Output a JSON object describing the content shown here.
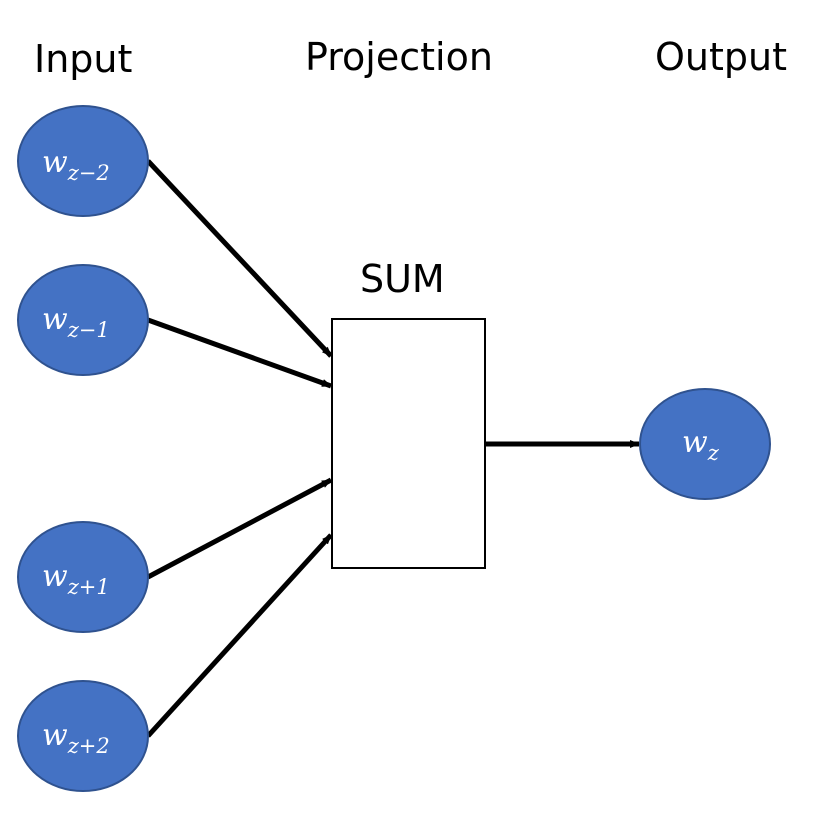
{
  "headings": {
    "input": "Input",
    "projection": "Projection",
    "output": "Output"
  },
  "sum_box": {
    "label": "SUM"
  },
  "nodes": {
    "input_1": {
      "var": "w",
      "sub": "z−2"
    },
    "input_2": {
      "var": "w",
      "sub": "z−1"
    },
    "input_3": {
      "var": "w",
      "sub": "z+1"
    },
    "input_4": {
      "var": "w",
      "sub": "z+2"
    },
    "output": {
      "var": "w",
      "sub": "z"
    }
  },
  "colors": {
    "node_fill": "#4472C4",
    "node_stroke": "#2F528F",
    "box_fill": "#FFFFFF",
    "box_stroke": "#000000",
    "arrow": "#000000",
    "text": "#000000",
    "node_text": "#FFFFFF"
  }
}
